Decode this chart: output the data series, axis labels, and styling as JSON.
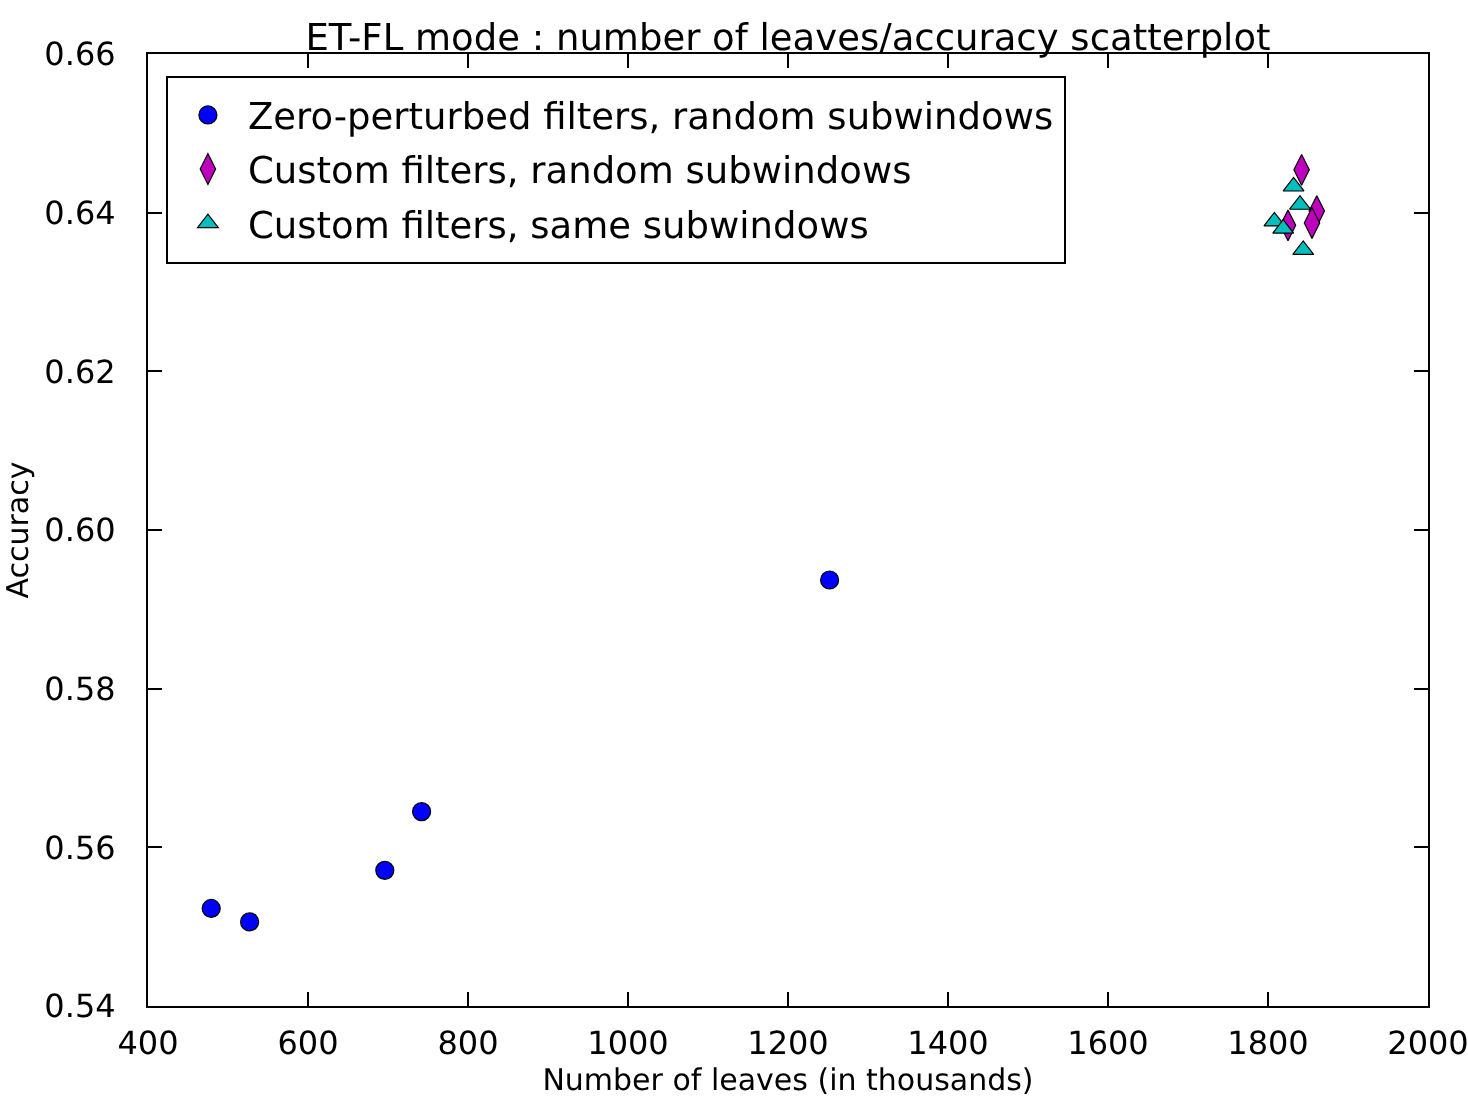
{
  "chart_data": {
    "type": "scatter",
    "title": "ET-FL mode : number of leaves/accuracy scatterplot",
    "xlabel": "Number of leaves (in thousands)",
    "ylabel": "Accuracy",
    "xlim": [
      400,
      2000
    ],
    "xticks": [
      400,
      600,
      800,
      1000,
      1200,
      1400,
      1600,
      1800,
      2000
    ],
    "ylim": [
      0.54,
      0.66
    ],
    "yticks": [
      {
        "value": 0.54,
        "label": "0.54"
      },
      {
        "value": 0.56,
        "label": "0.56"
      },
      {
        "value": 0.58,
        "label": "0.58"
      },
      {
        "value": 0.6,
        "label": "0.60"
      },
      {
        "value": 0.62,
        "label": "0.62"
      },
      {
        "value": 0.64,
        "label": "0.64"
      },
      {
        "value": 0.66,
        "label": "0.66"
      }
    ],
    "legend": "top left",
    "series": [
      {
        "name": "Zero-perturbed filters, random subwindows",
        "color": "#0000ff",
        "marker": "circle",
        "x": [
          479,
          527,
          696,
          742,
          1252
        ],
        "values": [
          0.5523,
          0.5506,
          0.5571,
          0.5645,
          0.5937
        ]
      },
      {
        "name": "Custom filters, random subwindows",
        "color": "#bf00bf",
        "marker": "diamond",
        "x": [
          1842,
          1861,
          1855,
          1825
        ],
        "values": [
          0.6454,
          0.6402,
          0.6387,
          0.6384
        ]
      },
      {
        "name": "Custom filters, same subwindows",
        "color": "#00bfbf",
        "marker": "triangle",
        "x": [
          1832,
          1840,
          1808,
          1819,
          1844
        ],
        "values": [
          0.6433,
          0.641,
          0.6389,
          0.638,
          0.6353
        ]
      }
    ]
  }
}
